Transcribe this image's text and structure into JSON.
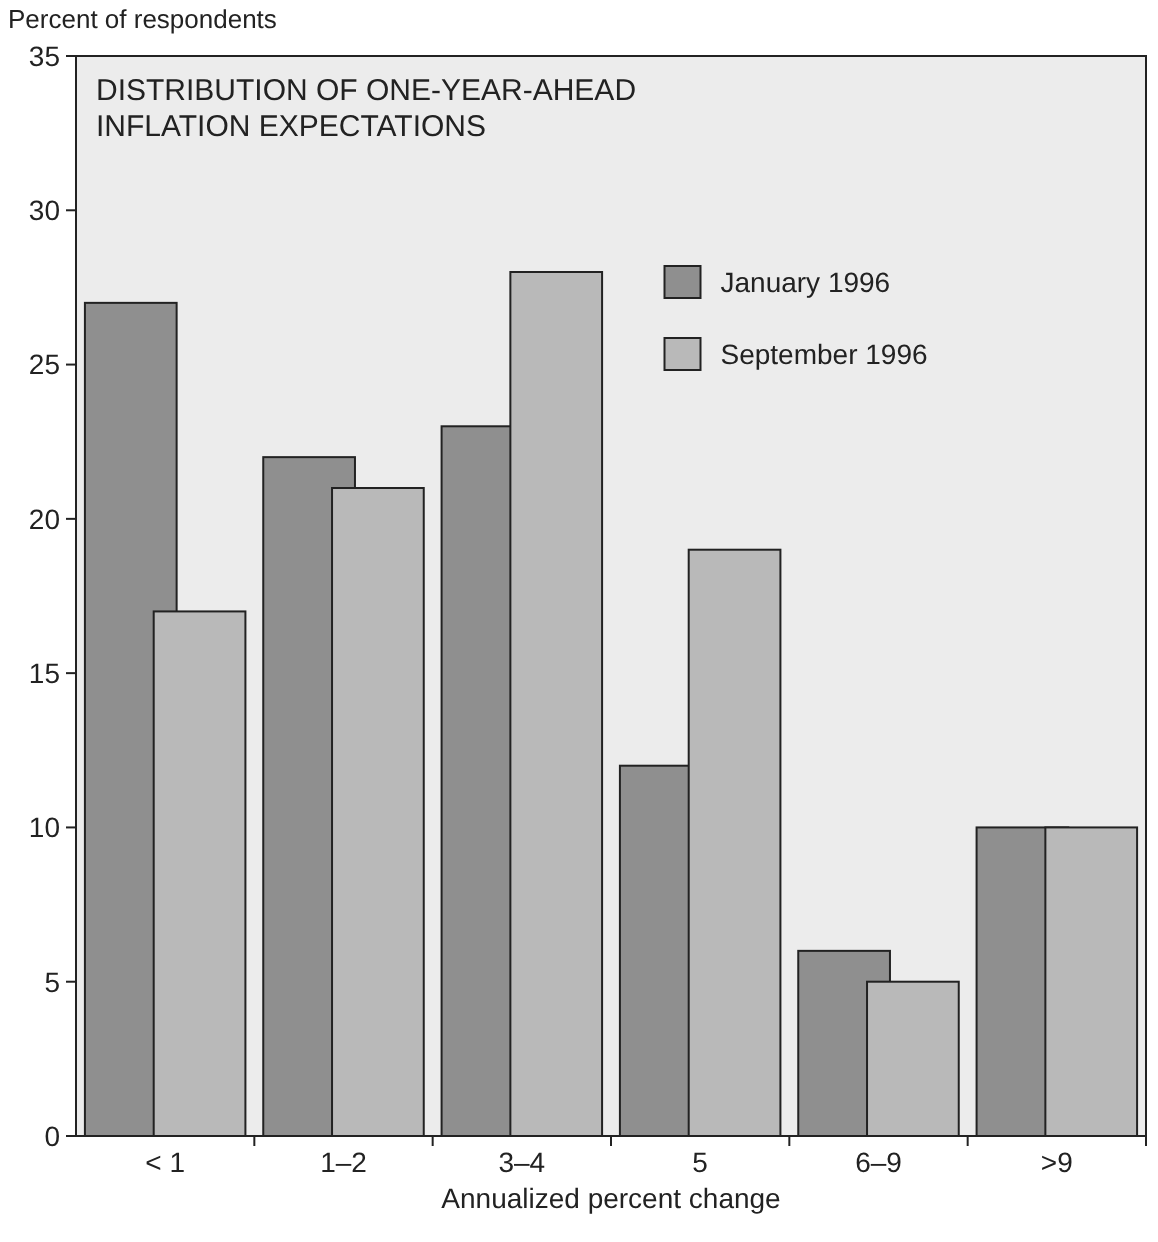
{
  "chart_data": {
    "type": "bar",
    "title": "DISTRIBUTION OF ONE-YEAR-AHEAD\nINFLATION EXPECTATIONS",
    "ylabel": "Percent of respondents",
    "xlabel": "Annualized percent change",
    "categories": [
      "< 1",
      "1–2",
      "3–4",
      "5",
      "6–9",
      ">9"
    ],
    "series": [
      {
        "name": "January 1996",
        "color": "#8f8f8f",
        "values": [
          27,
          22,
          23,
          12,
          6,
          10
        ]
      },
      {
        "name": "September 1996",
        "color": "#b9b9b9",
        "values": [
          17,
          21,
          28,
          19,
          5,
          10
        ]
      }
    ],
    "ylim": [
      0,
      35
    ],
    "yticks": [
      0,
      5,
      10,
      15,
      20,
      25,
      30,
      35
    ],
    "grid": false,
    "legend": "top right"
  }
}
